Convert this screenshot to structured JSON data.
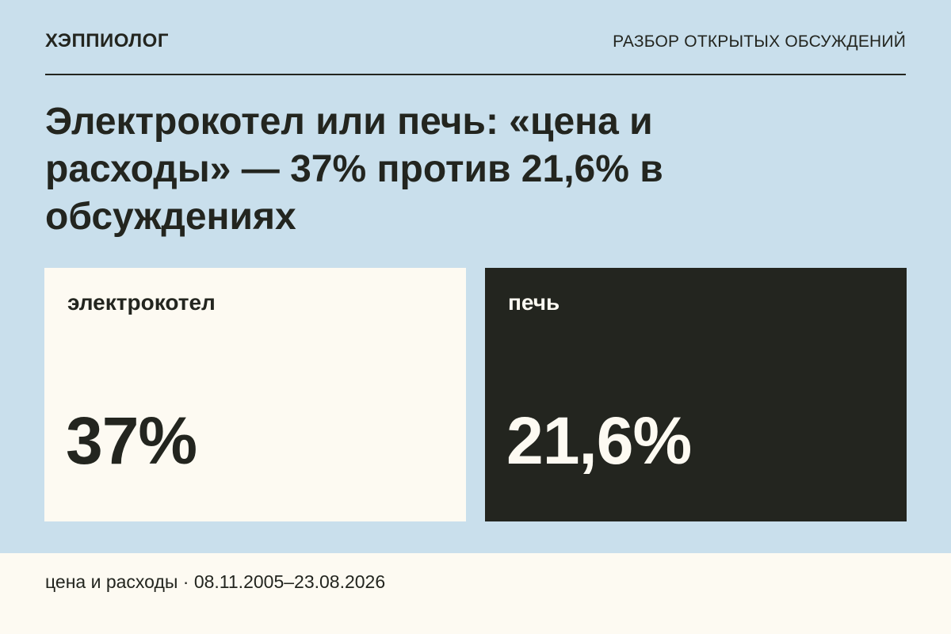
{
  "header": {
    "brand": "ХЭППИОЛОГ",
    "section": "РАЗБОР ОТКРЫТЫХ ОБСУЖДЕНИЙ"
  },
  "headline": "Электрокотел или печь: «цена и расходы» — 37% против 21,6% в обсуждениях",
  "comparison": [
    {
      "label": "электрокотел",
      "value": "37%",
      "value_percent": 37,
      "background": "#fdfaf2",
      "text_color": "#23251f"
    },
    {
      "label": "печь",
      "value": "21,6%",
      "value_percent": 21.6,
      "background": "#23251f",
      "text_color": "#fdfaf2"
    }
  ],
  "footer": {
    "caption": "цена и расходы · 08.11.2005–23.08.2026"
  },
  "colors": {
    "page_background": "#c9dfec",
    "dark": "#23251f",
    "light": "#fdfaf2"
  }
}
